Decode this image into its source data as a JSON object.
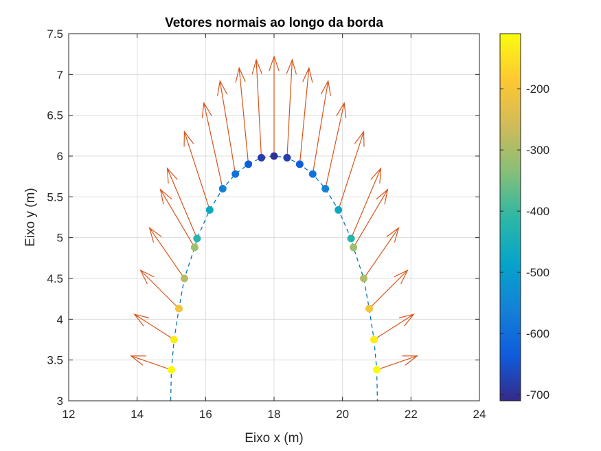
{
  "chart_data": {
    "type": "scatter",
    "title": "Vetores normais ao longo da borda",
    "xlabel": "Eixo x (m)",
    "ylabel": "Eixo y (m)",
    "xlim": [
      12,
      24
    ],
    "ylim": [
      3,
      7.5
    ],
    "xticks": [
      "12",
      "14",
      "16",
      "18",
      "20",
      "22",
      "24"
    ],
    "yticks": [
      "3",
      "3.5",
      "4",
      "4.5",
      "5",
      "5.5",
      "6",
      "6.5",
      "7",
      "7.5"
    ],
    "grid": true,
    "boundary_curve": {
      "style": "dashed",
      "color": "#0072BD",
      "points": [
        [
          14.98,
          3.0
        ],
        [
          15.0,
          3.38
        ],
        [
          15.08,
          3.75
        ],
        [
          15.22,
          4.13
        ],
        [
          15.38,
          4.5
        ],
        [
          15.68,
          4.88
        ],
        [
          15.75,
          4.99
        ],
        [
          16.12,
          5.34
        ],
        [
          16.5,
          5.6
        ],
        [
          16.87,
          5.78
        ],
        [
          17.25,
          5.9
        ],
        [
          17.63,
          5.98
        ],
        [
          18.0,
          6.0
        ],
        [
          18.38,
          5.98
        ],
        [
          18.75,
          5.9
        ],
        [
          19.13,
          5.78
        ],
        [
          19.5,
          5.6
        ],
        [
          19.88,
          5.34
        ],
        [
          20.25,
          4.99
        ],
        [
          20.32,
          4.88
        ],
        [
          20.62,
          4.5
        ],
        [
          20.78,
          4.13
        ],
        [
          20.92,
          3.75
        ],
        [
          21.0,
          3.38
        ],
        [
          21.02,
          3.0
        ]
      ]
    },
    "points": [
      {
        "x": 15.0,
        "y": 3.38,
        "c": -110
      },
      {
        "x": 15.08,
        "y": 3.75,
        "c": -130
      },
      {
        "x": 15.22,
        "y": 4.13,
        "c": -200
      },
      {
        "x": 15.38,
        "y": 4.5,
        "c": -290
      },
      {
        "x": 15.68,
        "y": 4.88,
        "c": -310
      },
      {
        "x": 15.75,
        "y": 4.99,
        "c": -420
      },
      {
        "x": 16.12,
        "y": 5.34,
        "c": -470
      },
      {
        "x": 16.5,
        "y": 5.6,
        "c": -560
      },
      {
        "x": 16.87,
        "y": 5.78,
        "c": -590
      },
      {
        "x": 17.25,
        "y": 5.9,
        "c": -630
      },
      {
        "x": 17.63,
        "y": 5.98,
        "c": -680
      },
      {
        "x": 18.0,
        "y": 6.0,
        "c": -700
      },
      {
        "x": 18.38,
        "y": 5.98,
        "c": -680
      },
      {
        "x": 18.75,
        "y": 5.9,
        "c": -630
      },
      {
        "x": 19.13,
        "y": 5.78,
        "c": -590
      },
      {
        "x": 19.5,
        "y": 5.6,
        "c": -560
      },
      {
        "x": 19.88,
        "y": 5.34,
        "c": -470
      },
      {
        "x": 20.25,
        "y": 4.99,
        "c": -420
      },
      {
        "x": 20.32,
        "y": 4.88,
        "c": -310
      },
      {
        "x": 20.62,
        "y": 4.5,
        "c": -290
      },
      {
        "x": 20.78,
        "y": 4.13,
        "c": -200
      },
      {
        "x": 20.92,
        "y": 3.75,
        "c": -130
      },
      {
        "x": 21.0,
        "y": 3.38,
        "c": -110
      }
    ],
    "normal_vectors": [
      {
        "x0": 15.0,
        "y0": 3.38,
        "x1": 13.82,
        "y1": 3.55
      },
      {
        "x0": 15.08,
        "y0": 3.75,
        "x1": 13.92,
        "y1": 4.06
      },
      {
        "x0": 15.22,
        "y0": 4.13,
        "x1": 14.1,
        "y1": 4.6
      },
      {
        "x0": 15.38,
        "y0": 4.5,
        "x1": 14.36,
        "y1": 5.12
      },
      {
        "x0": 15.68,
        "y0": 4.88,
        "x1": 14.68,
        "y1": 5.59
      },
      {
        "x0": 15.75,
        "y0": 4.99,
        "x1": 14.88,
        "y1": 5.85
      },
      {
        "x0": 16.12,
        "y0": 5.34,
        "x1": 15.38,
        "y1": 6.3
      },
      {
        "x0": 16.5,
        "y0": 5.6,
        "x1": 15.95,
        "y1": 6.65
      },
      {
        "x0": 16.87,
        "y0": 5.78,
        "x1": 16.42,
        "y1": 6.92
      },
      {
        "x0": 17.25,
        "y0": 5.9,
        "x1": 16.98,
        "y1": 7.08
      },
      {
        "x0": 17.63,
        "y0": 5.98,
        "x1": 17.48,
        "y1": 7.18
      },
      {
        "x0": 18.0,
        "y0": 6.0,
        "x1": 18.0,
        "y1": 7.22
      },
      {
        "x0": 18.38,
        "y0": 5.98,
        "x1": 18.53,
        "y1": 7.18
      },
      {
        "x0": 18.75,
        "y0": 5.9,
        "x1": 19.02,
        "y1": 7.08
      },
      {
        "x0": 19.13,
        "y0": 5.78,
        "x1": 19.58,
        "y1": 6.92
      },
      {
        "x0": 19.5,
        "y0": 5.6,
        "x1": 20.05,
        "y1": 6.65
      },
      {
        "x0": 19.88,
        "y0": 5.34,
        "x1": 20.62,
        "y1": 6.3
      },
      {
        "x0": 20.25,
        "y0": 4.99,
        "x1": 21.12,
        "y1": 5.85
      },
      {
        "x0": 20.32,
        "y0": 4.88,
        "x1": 21.32,
        "y1": 5.59
      },
      {
        "x0": 20.62,
        "y0": 4.5,
        "x1": 21.64,
        "y1": 5.12
      },
      {
        "x0": 20.78,
        "y0": 4.13,
        "x1": 21.9,
        "y1": 4.6
      },
      {
        "x0": 20.92,
        "y0": 3.75,
        "x1": 22.08,
        "y1": 4.06
      },
      {
        "x0": 21.0,
        "y0": 3.38,
        "x1": 22.18,
        "y1": 3.55
      }
    ],
    "arrow_color": "#D95319",
    "colorbar": {
      "colormap": "parula",
      "clim": [
        -710,
        -110
      ],
      "ticks": [
        "-200",
        "-300",
        "-400",
        "-500",
        "-600",
        "-700"
      ],
      "tick_values": [
        -200,
        -300,
        -400,
        -500,
        -600,
        -700
      ]
    }
  }
}
